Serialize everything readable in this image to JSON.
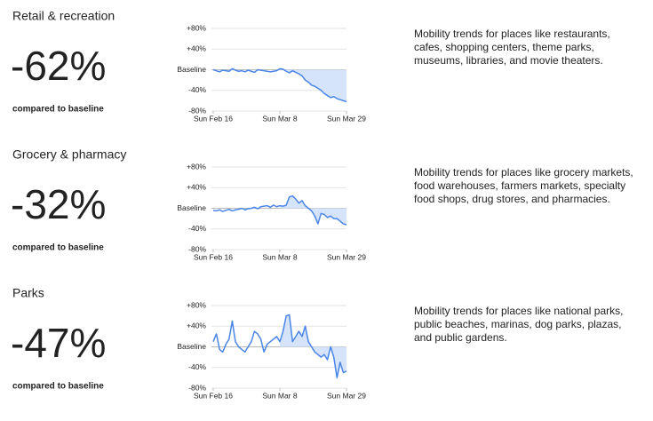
{
  "chart_data": [
    {
      "type": "line",
      "title": "Retail & recreation",
      "headline": "-62%",
      "caption": "compared to baseline",
      "description": "Mobility trends for places like restaurants, cafes, shopping centers, theme parks, museums, libraries, and movie theaters.",
      "x": [
        0,
        1,
        2,
        3,
        4,
        5,
        6,
        7,
        8,
        9,
        10,
        11,
        12,
        13,
        14,
        15,
        16,
        17,
        18,
        19,
        20,
        21,
        22,
        23,
        24,
        25,
        26,
        27,
        28,
        29,
        30,
        31,
        32,
        33,
        34,
        35,
        36,
        37,
        38,
        39,
        40,
        41,
        42
      ],
      "xlim": [
        0,
        42
      ],
      "xticks": [
        {
          "value": 0,
          "label": "Sun Feb 16"
        },
        {
          "value": 21,
          "label": "Sun Mar 8"
        },
        {
          "value": 42,
          "label": "Sun Mar 29"
        }
      ],
      "ylim": [
        -80,
        80
      ],
      "yticks": [
        {
          "value": 80,
          "label": "+80%"
        },
        {
          "value": 40,
          "label": "+40%"
        },
        {
          "value": 0,
          "label": "Baseline"
        },
        {
          "value": -40,
          "label": "-40%"
        },
        {
          "value": -80,
          "label": "-80%"
        }
      ],
      "grid": true,
      "shaded_from": 21,
      "color": "#4a86e8",
      "shade_color": "#d6e4fb",
      "values": [
        0,
        -2,
        -4,
        -1,
        -2,
        -3,
        2,
        -1,
        -3,
        -2,
        -4,
        -1,
        -3,
        -5,
        0,
        -1,
        -2,
        -3,
        -4,
        -3,
        -2,
        2,
        1,
        -3,
        -6,
        -2,
        -5,
        -8,
        -12,
        -20,
        -24,
        -30,
        -32,
        -36,
        -40,
        -46,
        -50,
        -54,
        -52,
        -56,
        -58,
        -60,
        -62
      ]
    },
    {
      "type": "line",
      "title": "Grocery & pharmacy",
      "headline": "-32%",
      "caption": "compared to baseline",
      "description": "Mobility trends for places like grocery markets, food warehouses, farmers markets, specialty food shops, drug stores, and pharmacies.",
      "x": [
        0,
        1,
        2,
        3,
        4,
        5,
        6,
        7,
        8,
        9,
        10,
        11,
        12,
        13,
        14,
        15,
        16,
        17,
        18,
        19,
        20,
        21,
        22,
        23,
        24,
        25,
        26,
        27,
        28,
        29,
        30,
        31,
        32,
        33,
        34,
        35,
        36,
        37,
        38,
        39,
        40,
        41,
        42
      ],
      "xlim": [
        0,
        42
      ],
      "xticks": [
        {
          "value": 0,
          "label": "Sun Feb 16"
        },
        {
          "value": 21,
          "label": "Sun Mar 8"
        },
        {
          "value": 42,
          "label": "Sun Mar 29"
        }
      ],
      "ylim": [
        -80,
        80
      ],
      "yticks": [
        {
          "value": 80,
          "label": "+80%"
        },
        {
          "value": 40,
          "label": "+40%"
        },
        {
          "value": 0,
          "label": "Baseline"
        },
        {
          "value": -40,
          "label": "-40%"
        },
        {
          "value": -80,
          "label": "-80%"
        }
      ],
      "grid": true,
      "shaded_from": 21,
      "color": "#4a86e8",
      "shade_color": "#d6e4fb",
      "values": [
        -4,
        -5,
        -3,
        -6,
        -4,
        -2,
        -5,
        -3,
        -2,
        0,
        -3,
        -1,
        0,
        2,
        -1,
        3,
        4,
        5,
        2,
        6,
        3,
        5,
        4,
        6,
        22,
        24,
        18,
        10,
        15,
        5,
        0,
        -5,
        -15,
        -30,
        -10,
        -12,
        -18,
        -15,
        -20,
        -20,
        -25,
        -30,
        -32
      ]
    },
    {
      "type": "line",
      "title": "Parks",
      "headline": "-47%",
      "caption": "compared to baseline",
      "description": "Mobility trends for places like national parks, public beaches, marinas, dog parks, plazas, and public gardens.",
      "x": [
        0,
        1,
        2,
        3,
        4,
        5,
        6,
        7,
        8,
        9,
        10,
        11,
        12,
        13,
        14,
        15,
        16,
        17,
        18,
        19,
        20,
        21,
        22,
        23,
        24,
        25,
        26,
        27,
        28,
        29,
        30,
        31,
        32,
        33,
        34,
        35,
        36,
        37,
        38,
        39,
        40,
        41,
        42
      ],
      "xlim": [
        0,
        42
      ],
      "xticks": [
        {
          "value": 0,
          "label": "Sun Feb 16"
        },
        {
          "value": 21,
          "label": "Sun Mar 8"
        },
        {
          "value": 42,
          "label": "Sun Mar 29"
        }
      ],
      "ylim": [
        -80,
        80
      ],
      "yticks": [
        {
          "value": 80,
          "label": "+80%"
        },
        {
          "value": 40,
          "label": "+40%"
        },
        {
          "value": 0,
          "label": "Baseline"
        },
        {
          "value": -40,
          "label": "-40%"
        },
        {
          "value": -80,
          "label": "-80%"
        }
      ],
      "grid": true,
      "shaded_from": 21,
      "color": "#4a86e8",
      "shade_color": "#d6e4fb",
      "values": [
        10,
        25,
        -5,
        -10,
        5,
        15,
        50,
        10,
        0,
        -5,
        -10,
        0,
        10,
        30,
        25,
        15,
        -10,
        5,
        10,
        15,
        20,
        10,
        30,
        60,
        62,
        10,
        20,
        30,
        20,
        40,
        10,
        0,
        -10,
        -15,
        -20,
        -15,
        -25,
        0,
        -20,
        -60,
        -30,
        -50,
        -47
      ]
    }
  ]
}
